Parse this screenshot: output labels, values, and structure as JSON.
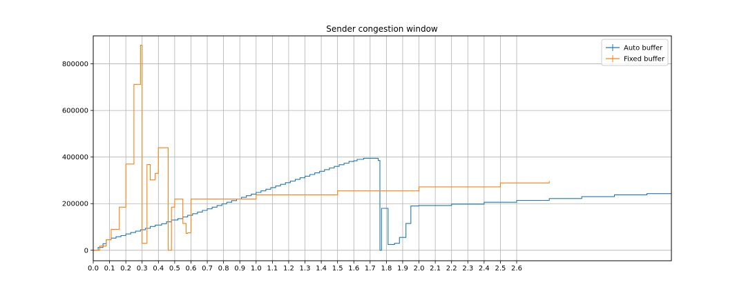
{
  "chart_data": {
    "type": "line",
    "title": "Sender congestion window",
    "xlabel": "",
    "ylabel": "",
    "xlim": [
      0,
      3.55
    ],
    "ylim": [
      -45000,
      920000
    ],
    "grid": true,
    "legend_position": "top-right",
    "x_ticks": [
      "0.0",
      "0.1",
      "0.2",
      "0.3",
      "0.4",
      "0.5",
      "0.6",
      "0.7",
      "0.8",
      "0.9",
      "1.0",
      "1.1",
      "1.2",
      "1.3",
      "1.4",
      "1.5",
      "1.6",
      "1.7",
      "1.8",
      "1.9",
      "2.0",
      "2.1",
      "2.2",
      "2.3",
      "2.4",
      "2.5",
      "2.6"
    ],
    "y_ticks": [
      0,
      200000,
      400000,
      600000,
      800000
    ],
    "y_tick_labels": [
      "0",
      "200000",
      "400000",
      "600000",
      "800000"
    ],
    "series": [
      {
        "name": "Auto buffer",
        "color": "#1f77b4",
        "step": true,
        "points": [
          [
            0.0,
            0
          ],
          [
            0.03,
            12000
          ],
          [
            0.06,
            28000
          ],
          [
            0.08,
            45000
          ],
          [
            0.11,
            52000
          ],
          [
            0.14,
            58000
          ],
          [
            0.17,
            63000
          ],
          [
            0.2,
            70000
          ],
          [
            0.23,
            76000
          ],
          [
            0.26,
            82000
          ],
          [
            0.29,
            88000
          ],
          [
            0.32,
            94000
          ],
          [
            0.35,
            102000
          ],
          [
            0.38,
            108000
          ],
          [
            0.42,
            114000
          ],
          [
            0.45,
            122000
          ],
          [
            0.48,
            130000
          ],
          [
            0.52,
            136000
          ],
          [
            0.55,
            143000
          ],
          [
            0.58,
            150000
          ],
          [
            0.61,
            157000
          ],
          [
            0.64,
            164000
          ],
          [
            0.67,
            171000
          ],
          [
            0.7,
            178000
          ],
          [
            0.73,
            185000
          ],
          [
            0.76,
            192000
          ],
          [
            0.79,
            199000
          ],
          [
            0.82,
            206000
          ],
          [
            0.85,
            213000
          ],
          [
            0.88,
            220000
          ],
          [
            0.91,
            227000
          ],
          [
            0.94,
            234000
          ],
          [
            0.97,
            241000
          ],
          [
            1.0,
            248000
          ],
          [
            1.03,
            255000
          ],
          [
            1.06,
            262000
          ],
          [
            1.09,
            269000
          ],
          [
            1.12,
            276000
          ],
          [
            1.15,
            283000
          ],
          [
            1.18,
            290000
          ],
          [
            1.21,
            297000
          ],
          [
            1.24,
            304000
          ],
          [
            1.27,
            311000
          ],
          [
            1.3,
            318000
          ],
          [
            1.33,
            325000
          ],
          [
            1.36,
            332000
          ],
          [
            1.39,
            339000
          ],
          [
            1.42,
            346000
          ],
          [
            1.45,
            353000
          ],
          [
            1.48,
            360000
          ],
          [
            1.51,
            367000
          ],
          [
            1.54,
            374000
          ],
          [
            1.57,
            381000
          ],
          [
            1.6,
            384000
          ],
          [
            1.62,
            390000
          ],
          [
            1.66,
            395000
          ],
          [
            1.7,
            395000
          ],
          [
            1.75,
            385000
          ],
          [
            1.76,
            385000
          ],
          [
            1.76,
            0
          ],
          [
            1.77,
            180000
          ],
          [
            1.81,
            180000
          ],
          [
            1.81,
            25000
          ],
          [
            1.85,
            30000
          ],
          [
            1.88,
            55000
          ],
          [
            1.92,
            115000
          ],
          [
            1.95,
            190000
          ],
          [
            2.0,
            192000
          ],
          [
            2.2,
            198000
          ],
          [
            2.4,
            206000
          ],
          [
            2.6,
            214000
          ],
          [
            2.8,
            222000
          ],
          [
            3.0,
            230000
          ],
          [
            3.2,
            238000
          ],
          [
            3.4,
            243000
          ],
          [
            3.55,
            243000
          ]
        ]
      },
      {
        "name": "Fixed buffer",
        "color": "#ff7f0e",
        "step": true,
        "points": [
          [
            0.0,
            0
          ],
          [
            0.04,
            18000
          ],
          [
            0.08,
            45000
          ],
          [
            0.11,
            90000
          ],
          [
            0.16,
            185000
          ],
          [
            0.2,
            370000
          ],
          [
            0.25,
            712000
          ],
          [
            0.29,
            880000
          ],
          [
            0.3,
            30000
          ],
          [
            0.33,
            368000
          ],
          [
            0.35,
            302000
          ],
          [
            0.38,
            330000
          ],
          [
            0.4,
            440000
          ],
          [
            0.45,
            440000
          ],
          [
            0.46,
            0
          ],
          [
            0.48,
            185000
          ],
          [
            0.5,
            220000
          ],
          [
            0.53,
            220000
          ],
          [
            0.55,
            115000
          ],
          [
            0.57,
            72000
          ],
          [
            0.58,
            75000
          ],
          [
            0.6,
            220000
          ],
          [
            1.0,
            238000
          ],
          [
            1.5,
            255000
          ],
          [
            2.0,
            272000
          ],
          [
            2.5,
            289000
          ],
          [
            2.8,
            297000
          ]
        ]
      }
    ]
  }
}
